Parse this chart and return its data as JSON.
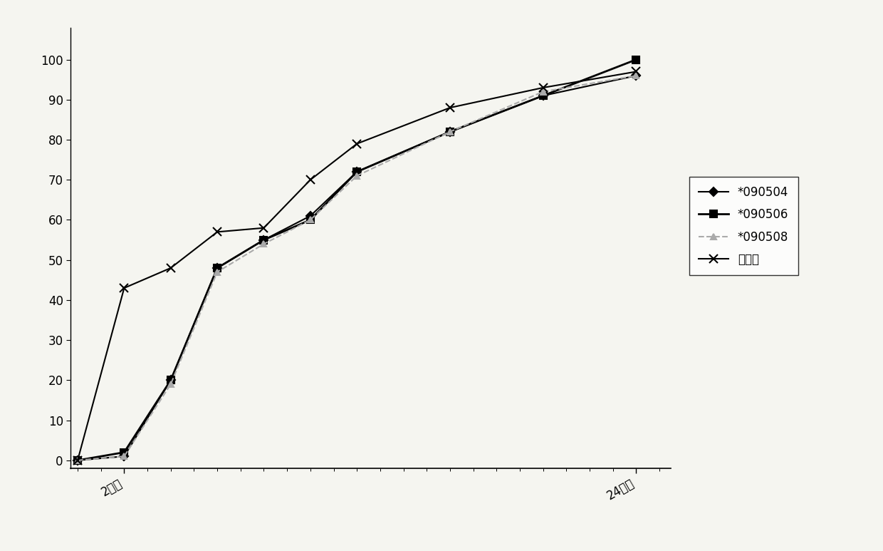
{
  "series": [
    {
      "label": "*090504",
      "color": "#000000",
      "marker": "D",
      "markersize": 6,
      "linestyle": "-",
      "linewidth": 1.5,
      "x": [
        0,
        2,
        4,
        6,
        8,
        10,
        12,
        16,
        20,
        24
      ],
      "y": [
        0,
        1,
        20,
        48,
        55,
        61,
        72,
        82,
        91,
        96
      ]
    },
    {
      "label": "*090506",
      "color": "#000000",
      "marker": "s",
      "markersize": 7,
      "linestyle": "-",
      "linewidth": 2.0,
      "x": [
        0,
        2,
        4,
        6,
        8,
        10,
        12,
        16,
        20,
        24
      ],
      "y": [
        0,
        2,
        20,
        48,
        55,
        60,
        72,
        82,
        91,
        100
      ]
    },
    {
      "label": "*090508",
      "color": "#aaaaaa",
      "marker": "^",
      "markersize": 6,
      "linestyle": "--",
      "linewidth": 1.5,
      "x": [
        0,
        2,
        4,
        6,
        8,
        10,
        12,
        16,
        20,
        24
      ],
      "y": [
        0,
        1,
        19,
        47,
        54,
        60,
        71,
        82,
        92,
        96
      ]
    },
    {
      "label": "进口品",
      "color": "#000000",
      "marker": "x",
      "markersize": 9,
      "linestyle": "-",
      "linewidth": 1.5,
      "x": [
        0,
        2,
        4,
        6,
        8,
        10,
        12,
        16,
        20,
        24
      ],
      "y": [
        0,
        43,
        48,
        57,
        58,
        70,
        79,
        88,
        93,
        97
      ]
    }
  ],
  "xlim": [
    -0.3,
    25.5
  ],
  "ylim": [
    -2,
    108
  ],
  "yticks": [
    0,
    10,
    20,
    30,
    40,
    50,
    60,
    70,
    80,
    90,
    100
  ],
  "xtick_positions": [
    2,
    24
  ],
  "xtick_labels": [
    "2小时",
    "24小时"
  ],
  "background_color": "#f5f5f0",
  "figsize": [
    12.4,
    7.73
  ],
  "dpi": 100
}
